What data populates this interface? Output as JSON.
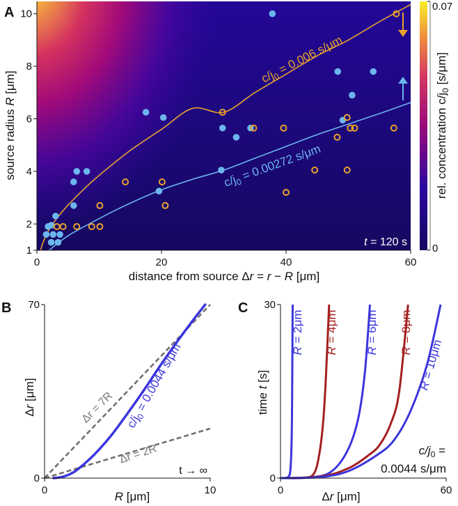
{
  "panel_labels": {
    "a": "A",
    "b": "B",
    "c": "C"
  },
  "colors": {
    "blue_points": "#6cb6ee",
    "orange": "#e9a22e",
    "deep_blue": "#3b35dc",
    "dark_red": "#a3201f",
    "gray": "#707070"
  },
  "chart_data": [
    {
      "type": "heatmap",
      "panel": "A",
      "xlabel": {
        "prefix": "distance from source  Δ",
        "r": "r",
        "eq": " = ",
        "r2": "r",
        "minus": " − ",
        "R": "R",
        "unit": "   [μm]"
      },
      "ylabel": {
        "prefix": "source radius  ",
        "R": "R",
        "unit": "   [μm]"
      },
      "xlim": [
        0,
        60
      ],
      "ylim": [
        1,
        10.4
      ],
      "xticks": [
        "0",
        "20",
        "40",
        "60"
      ],
      "yticks": [
        "1",
        "2",
        "4",
        "6",
        "8",
        "10"
      ],
      "time_label": {
        "t": "t",
        "rest": " = 120 s"
      },
      "colorbar": {
        "min_label": "0",
        "max_label": "0.07",
        "range": [
          0,
          0.07
        ],
        "label_prefix": "rel. concentration  c/j",
        "label_sub": "0",
        "label_suffix": "  [s/μm]"
      },
      "series": [
        {
          "name": "filled",
          "marker": "filled-circle",
          "points": [
            [
              1.5,
              1.6
            ],
            [
              1.8,
              1.9
            ],
            [
              2.3,
              1.95
            ],
            [
              3,
              2.3
            ],
            [
              2.6,
              1.6
            ],
            [
              2.3,
              1.3
            ],
            [
              3.4,
              1.3
            ],
            [
              3.7,
              1.6
            ],
            [
              5.9,
              2.7
            ],
            [
              5.9,
              3.6
            ],
            [
              6.4,
              4
            ],
            [
              8,
              4
            ],
            [
              17.5,
              6.25
            ],
            [
              20.3,
              6.05
            ],
            [
              19.6,
              3.25
            ],
            [
              29.6,
              4.05
            ],
            [
              29.8,
              5.65
            ],
            [
              32,
              5.3
            ],
            [
              34.3,
              5.65
            ],
            [
              37.8,
              10
            ],
            [
              48.3,
              7.8
            ],
            [
              49.1,
              5.95
            ],
            [
              50.6,
              6.9
            ],
            [
              54,
              7.8
            ]
          ]
        },
        {
          "name": "open",
          "marker": "open-circle",
          "points": [
            [
              3.2,
              1.9
            ],
            [
              4.2,
              1.9
            ],
            [
              6.4,
              1.9
            ],
            [
              8.8,
              1.9
            ],
            [
              10.1,
              1.9
            ],
            [
              10.1,
              2.7
            ],
            [
              14.2,
              3.6
            ],
            [
              20.1,
              3.6
            ],
            [
              20.6,
              2.7
            ],
            [
              29.8,
              6.25
            ],
            [
              34.8,
              5.65
            ],
            [
              39.6,
              5.65
            ],
            [
              40,
              3.2
            ],
            [
              44.6,
              4.05
            ],
            [
              48.2,
              5.3
            ],
            [
              49.8,
              6.05
            ],
            [
              50.3,
              5.65
            ],
            [
              51,
              5.65
            ],
            [
              57.3,
              5.65
            ],
            [
              49.8,
              4.05
            ],
            [
              57.7,
              10
            ]
          ]
        },
        {
          "name": "contour 0.006",
          "label_prefix": "c/j",
          "label_sub": "0",
          "label_suffix": " = 0.006 s/μm",
          "points": [
            [
              0.6,
              1
            ],
            [
              1,
              1.3
            ],
            [
              2,
              1.8
            ],
            [
              4,
              2.45
            ],
            [
              7,
              3.2
            ],
            [
              10,
              3.85
            ],
            [
              15,
              4.8
            ],
            [
              20,
              5.6
            ],
            [
              25,
              6.4
            ],
            [
              30,
              6.25
            ],
            [
              35,
              7.0
            ],
            [
              40,
              7.7
            ],
            [
              45,
              8.4
            ],
            [
              50,
              9.0
            ],
            [
              55,
              9.7
            ],
            [
              60,
              10.35
            ]
          ]
        },
        {
          "name": "contour 0.00272",
          "label_prefix": "c/j",
          "label_sub": "0",
          "label_suffix": " = 0.00272 s/μm",
          "points": [
            [
              2,
              1
            ],
            [
              3,
              1.2
            ],
            [
              5,
              1.55
            ],
            [
              8,
              1.95
            ],
            [
              12,
              2.45
            ],
            [
              16,
              2.9
            ],
            [
              20,
              3.3
            ],
            [
              25,
              3.7
            ],
            [
              30,
              4.05
            ],
            [
              35,
              4.5
            ],
            [
              40,
              4.95
            ],
            [
              45,
              5.4
            ],
            [
              50,
              5.8
            ],
            [
              55,
              6.2
            ],
            [
              60,
              6.62
            ]
          ]
        }
      ]
    },
    {
      "type": "line",
      "panel": "B",
      "xlabel": {
        "R": "R",
        "unit": "   [μm]"
      },
      "ylabel": {
        "d": "Δ",
        "r": "r",
        "unit": "   [μm]"
      },
      "xlim": [
        0,
        10
      ],
      "ylim": [
        0,
        70
      ],
      "xticks": [
        "0",
        "10"
      ],
      "yticks": [
        "0",
        "70"
      ],
      "annotation": "t → ∞",
      "series": [
        {
          "name": "Δr = 7R",
          "label": "Δr = 7R",
          "style": "dashed",
          "points": [
            [
              0,
              0
            ],
            [
              10,
              70
            ]
          ]
        },
        {
          "name": "Δr = 2R",
          "label": "Δr = 2R",
          "style": "dashed",
          "points": [
            [
              0,
              0
            ],
            [
              10,
              20
            ]
          ]
        },
        {
          "name": "c/j0 = 0.0044 s/μm",
          "label_prefix": "c/j",
          "label_sub": "0",
          "label_suffix": " = 0.0044 s/μm",
          "points": [
            [
              0.55,
              0
            ],
            [
              1,
              0.4
            ],
            [
              1.5,
              1.5
            ],
            [
              2,
              3.5
            ],
            [
              3,
              9.5
            ],
            [
              4,
              17
            ],
            [
              5,
              26
            ],
            [
              6,
              35.5
            ],
            [
              7,
              45.5
            ],
            [
              8,
              55
            ],
            [
              9,
              64
            ],
            [
              9.7,
              70
            ]
          ]
        }
      ]
    },
    {
      "type": "line",
      "panel": "C",
      "xlabel": {
        "d": "Δ",
        "r": "r",
        "unit": "   [μm]"
      },
      "ylabel": {
        "prefix": "time  ",
        "t": "t",
        "unit": "   [s]"
      },
      "xlim": [
        0,
        60
      ],
      "ylim": [
        0,
        30
      ],
      "xticks": [
        "0",
        "60"
      ],
      "yticks": [
        "0",
        "30"
      ],
      "annotation": {
        "line1_prefix": "c/j",
        "line1_sub": "0",
        "line1_suffix": " =",
        "line2": "0.0044 s/μm"
      },
      "series": [
        {
          "name": "R=2μm",
          "label": "R = 2μm",
          "color": "#3b35dc",
          "points": [
            [
              0,
              0
            ],
            [
              2,
              0.05
            ],
            [
              3,
              0.3
            ],
            [
              3.6,
              1.5
            ],
            [
              4,
              6
            ],
            [
              4.2,
              13
            ],
            [
              4.4,
              30
            ]
          ]
        },
        {
          "name": "R=4μm",
          "label": "R = 4μm",
          "color": "#a3201f",
          "points": [
            [
              0,
              0
            ],
            [
              8,
              0.05
            ],
            [
              12,
              0.7
            ],
            [
              14,
              4
            ],
            [
              15.5,
              10
            ],
            [
              16.5,
              18
            ],
            [
              17.6,
              30
            ]
          ]
        },
        {
          "name": "R=6μm",
          "label": "R = 6μm",
          "color": "#3b35dc",
          "points": [
            [
              0,
              0
            ],
            [
              10,
              0.1
            ],
            [
              18,
              1
            ],
            [
              24,
              4.5
            ],
            [
              28,
              10
            ],
            [
              30.5,
              18
            ],
            [
              32.4,
              30
            ]
          ]
        },
        {
          "name": "R=8μm",
          "label": "R = 8μm",
          "color": "#a3201f",
          "points": [
            [
              0,
              0
            ],
            [
              15,
              0.3
            ],
            [
              25,
              1.8
            ],
            [
              32,
              4
            ],
            [
              36,
              5.8
            ],
            [
              40,
              9.5
            ],
            [
              43,
              15
            ],
            [
              46.2,
              30
            ]
          ]
        },
        {
          "name": "R=10μm",
          "label": "R = 10μm",
          "color": "#3b35dc",
          "points": [
            [
              0,
              0
            ],
            [
              15,
              0.2
            ],
            [
              25,
              1.3
            ],
            [
              35,
              4
            ],
            [
              41,
              6.5
            ],
            [
              47,
              11.5
            ],
            [
              53,
              19.5
            ],
            [
              58,
              30
            ]
          ]
        }
      ]
    }
  ]
}
